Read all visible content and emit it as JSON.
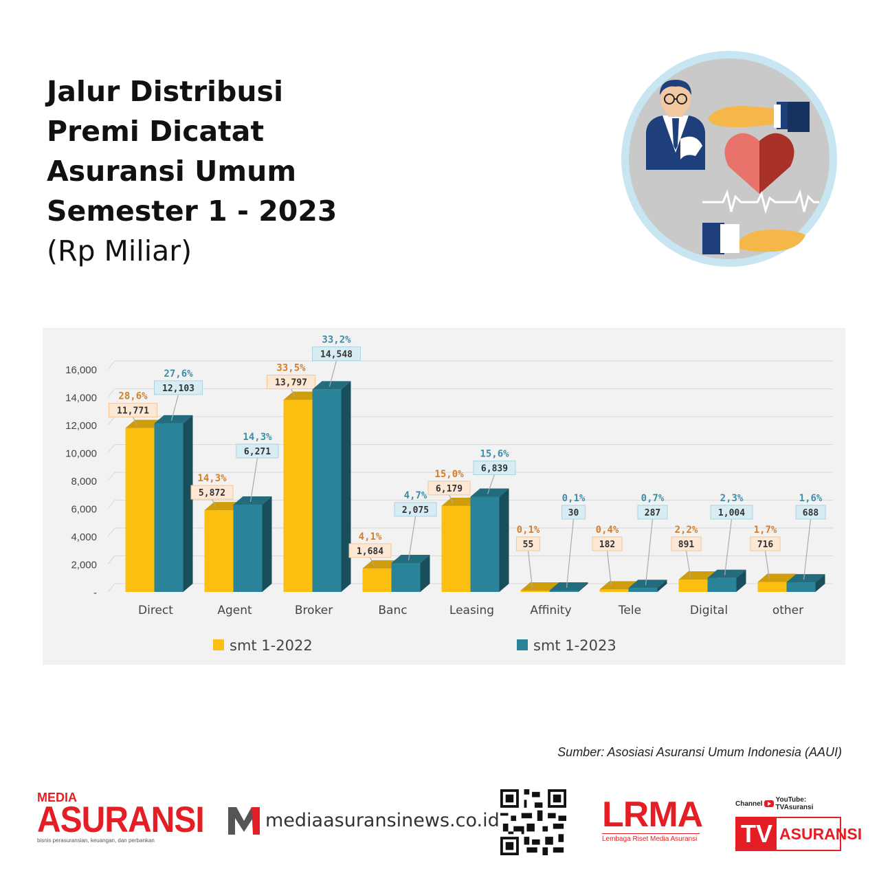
{
  "title": {
    "lines": [
      "Jalur Distribusi",
      "Premi Dicatat",
      "Asuransi Umum",
      "Semester 1 - 2023"
    ],
    "unit": "(Rp Miliar)"
  },
  "colors": {
    "series_2022": "#fdbf0f",
    "series_2023": "#2a8499",
    "pct_2022": "#d47e2a",
    "pct_2023": "#3b8ea5"
  },
  "chart_data": {
    "type": "bar",
    "categories": [
      "Direct",
      "Agent",
      "Broker",
      "Banc",
      "Leasing",
      "Affinity",
      "Tele",
      "Digital",
      "other"
    ],
    "series": [
      {
        "name": "smt 1-2022",
        "values": [
          11771,
          5872,
          13797,
          1684,
          6179,
          55,
          182,
          891,
          716
        ],
        "value_labels": [
          "11,771",
          "5,872",
          "13,797",
          "1,684",
          "6,179",
          "55",
          "182",
          "891",
          "716"
        ],
        "pct_labels": [
          "28,6%",
          "14,3%",
          "33,5%",
          "4,1%",
          "15,0%",
          "0,1%",
          "0,4%",
          "2,2%",
          "1,7%"
        ]
      },
      {
        "name": "smt 1-2023",
        "values": [
          12103,
          6271,
          14548,
          2075,
          6839,
          30,
          287,
          1004,
          688
        ],
        "value_labels": [
          "12,103",
          "6,271",
          "14,548",
          "2,075",
          "6,839",
          "30",
          "287",
          "1,004",
          "688"
        ],
        "pct_labels": [
          "27,6%",
          "14,3%",
          "33,2%",
          "4,7%",
          "15,6%",
          "0,1%",
          "0,7%",
          "2,3%",
          "1,6%"
        ]
      }
    ],
    "y_ticks": [
      0,
      2000,
      4000,
      6000,
      8000,
      10000,
      12000,
      14000,
      16000
    ],
    "y_tick_labels": [
      "-",
      "2,000",
      "4,000",
      "6,000",
      "8,000",
      "10,000",
      "12,000",
      "14,000",
      "16,000"
    ],
    "ylim": [
      0,
      16000
    ],
    "grid": true,
    "legend_position": "bottom"
  },
  "source": "Sumber: Asosiasi Asuransi Umum Indonesia (AAUI)",
  "footer": {
    "media_asuransi": {
      "top": "MEDIA",
      "main": "ASURANSI",
      "tagline": "bisnis perasuransian, keuangan, dan perbankan"
    },
    "news_site": {
      "prefix": "media",
      "suffix": "asuransinews.co.id"
    },
    "lrma": {
      "main": "LRMA",
      "sub": "Lembaga Riset Media Asuransi"
    },
    "tv": {
      "channel": "Channel",
      "youtube": "YouTube: TVAsuransi",
      "tv": "TV",
      "asuransi": "ASURANSI"
    }
  }
}
